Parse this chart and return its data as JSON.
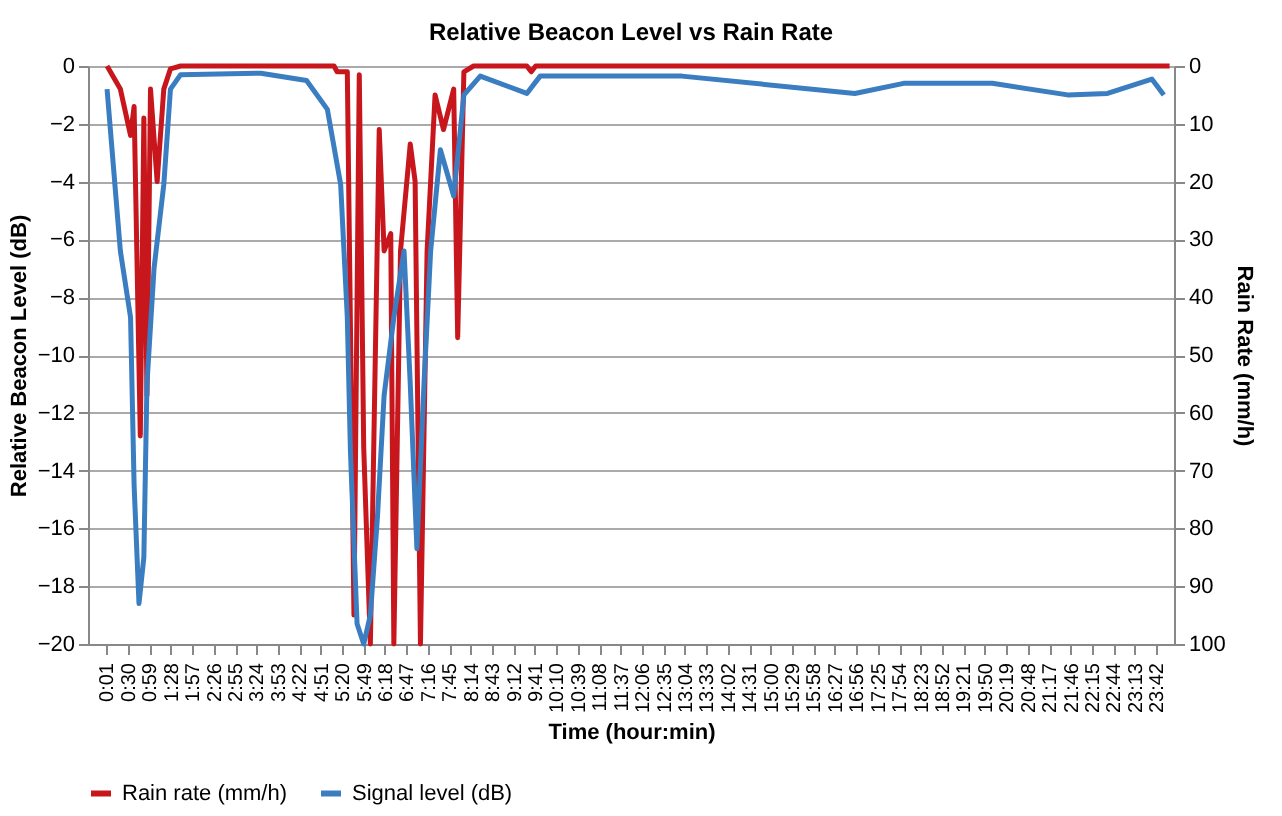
{
  "chart_data": {
    "type": "line",
    "title": "Relative Beacon Level vs Rain Rate",
    "xlabel": "Time (hour:min)",
    "ylabel": "Relative Beacon Level (dB)",
    "y2label": "Rain Rate (mm/h)",
    "xlim": [
      -0.4,
      24.1
    ],
    "xticks": [
      {
        "value": 0.0167,
        "label": "0:01"
      },
      {
        "value": 0.5,
        "label": "0:30"
      },
      {
        "value": 0.9833,
        "label": "0:59"
      },
      {
        "value": 1.4667,
        "label": "1:28"
      },
      {
        "value": 1.95,
        "label": "1:57"
      },
      {
        "value": 2.4333,
        "label": "2:26"
      },
      {
        "value": 2.9167,
        "label": "2:55"
      },
      {
        "value": 3.4,
        "label": "3:24"
      },
      {
        "value": 3.8833,
        "label": "3:53"
      },
      {
        "value": 4.3667,
        "label": "4:22"
      },
      {
        "value": 4.85,
        "label": "4:51"
      },
      {
        "value": 5.3333,
        "label": "5:20"
      },
      {
        "value": 5.8167,
        "label": "5:49"
      },
      {
        "value": 6.3,
        "label": "6:18"
      },
      {
        "value": 6.7833,
        "label": "6:47"
      },
      {
        "value": 7.2667,
        "label": "7:16"
      },
      {
        "value": 7.75,
        "label": "7:45"
      },
      {
        "value": 8.2333,
        "label": "8:14"
      },
      {
        "value": 8.7167,
        "label": "8:43"
      },
      {
        "value": 9.2,
        "label": "9:12"
      },
      {
        "value": 9.6833,
        "label": "9:41"
      },
      {
        "value": 10.1667,
        "label": "10:10"
      },
      {
        "value": 10.65,
        "label": "10:39"
      },
      {
        "value": 11.1333,
        "label": "11:08"
      },
      {
        "value": 11.6167,
        "label": "11:37"
      },
      {
        "value": 12.1,
        "label": "12:06"
      },
      {
        "value": 12.5833,
        "label": "12:35"
      },
      {
        "value": 13.0667,
        "label": "13:04"
      },
      {
        "value": 13.55,
        "label": "13:33"
      },
      {
        "value": 14.0333,
        "label": "14:02"
      },
      {
        "value": 14.5167,
        "label": "14:31"
      },
      {
        "value": 15,
        "label": "15:00"
      },
      {
        "value": 15.4833,
        "label": "15:29"
      },
      {
        "value": 15.9667,
        "label": "15:58"
      },
      {
        "value": 16.45,
        "label": "16:27"
      },
      {
        "value": 16.9333,
        "label": "16:56"
      },
      {
        "value": 17.4167,
        "label": "17:25"
      },
      {
        "value": 17.9,
        "label": "17:54"
      },
      {
        "value": 18.3833,
        "label": "18:23"
      },
      {
        "value": 18.8667,
        "label": "18:52"
      },
      {
        "value": 19.35,
        "label": "19:21"
      },
      {
        "value": 19.8333,
        "label": "19:50"
      },
      {
        "value": 20.3167,
        "label": "20:19"
      },
      {
        "value": 20.8,
        "label": "20:48"
      },
      {
        "value": 21.2833,
        "label": "21:17"
      },
      {
        "value": 21.7667,
        "label": "21:46"
      },
      {
        "value": 22.25,
        "label": "22:15"
      },
      {
        "value": 22.7333,
        "label": "22:44"
      },
      {
        "value": 23.2167,
        "label": "23:13"
      },
      {
        "value": 23.7,
        "label": "23:42"
      }
    ],
    "ylim": [
      -20,
      0
    ],
    "yticks": [
      -20,
      -18,
      -16,
      -14,
      -12,
      -10,
      -8,
      -6,
      -4,
      -2,
      0
    ],
    "y2lim": [
      100,
      0
    ],
    "y2ticks": [
      0,
      10,
      20,
      30,
      40,
      50,
      60,
      70,
      80,
      90,
      100
    ],
    "grid": "y",
    "legend": "bottom",
    "line_style": "solid",
    "marker": "none",
    "series": [
      {
        "name": "Rain rate (mm/h)",
        "color": "#c8161d",
        "axis": "y2",
        "x": [
          0.03,
          0.33,
          0.56,
          0.64,
          0.78,
          0.86,
          0.93,
          1.01,
          1.16,
          1.31,
          1.46,
          1.69,
          5.15,
          5.22,
          5.45,
          5.6,
          5.72,
          5.82,
          5.97,
          6.17,
          6.28,
          6.43,
          6.5,
          6.65,
          6.87,
          6.98,
          7.1,
          7.25,
          7.43,
          7.62,
          7.85,
          7.94,
          8.08,
          8.3,
          9.5,
          9.6,
          9.7,
          24.0
        ],
        "values": [
          0,
          4,
          12,
          7,
          64,
          9,
          57,
          4,
          20,
          4,
          0.5,
          0,
          0,
          1,
          1,
          95,
          1.5,
          66,
          100,
          11,
          32,
          29,
          100,
          32,
          13.5,
          20,
          100,
          32,
          5,
          11,
          4,
          47,
          1,
          0,
          0,
          1,
          0,
          0
        ]
      },
      {
        "name": "Signal level (dB)",
        "color": "#3a7dc1",
        "x": [
          0.03,
          0.33,
          0.56,
          0.64,
          0.75,
          0.86,
          0.93,
          1.09,
          1.31,
          1.46,
          1.69,
          3.5,
          4.53,
          5.0,
          5.3,
          5.45,
          5.52,
          5.67,
          5.82,
          5.97,
          6.13,
          6.28,
          6.5,
          6.73,
          6.87,
          7.02,
          7.18,
          7.33,
          7.55,
          7.85,
          8.08,
          8.45,
          9.5,
          9.8,
          10.5,
          13.0,
          16.9,
          18.0,
          20.0,
          21.7,
          22.6,
          23.6,
          23.87
        ],
        "values": [
          -0.8,
          -6.4,
          -8.7,
          -14.5,
          -18.6,
          -17,
          -11,
          -7,
          -4.1,
          -0.8,
          -0.3,
          -0.25,
          -0.5,
          -1.5,
          -4.1,
          -8.7,
          -13.3,
          -19.3,
          -20,
          -19,
          -15.6,
          -11.4,
          -8.7,
          -6.4,
          -11,
          -16.7,
          -11,
          -6.4,
          -2.9,
          -4.5,
          -1.0,
          -0.35,
          -0.95,
          -0.35,
          -0.35,
          -0.35,
          -0.95,
          -0.6,
          -0.6,
          -1.0,
          -0.95,
          -0.45,
          -1.0
        ]
      }
    ]
  }
}
